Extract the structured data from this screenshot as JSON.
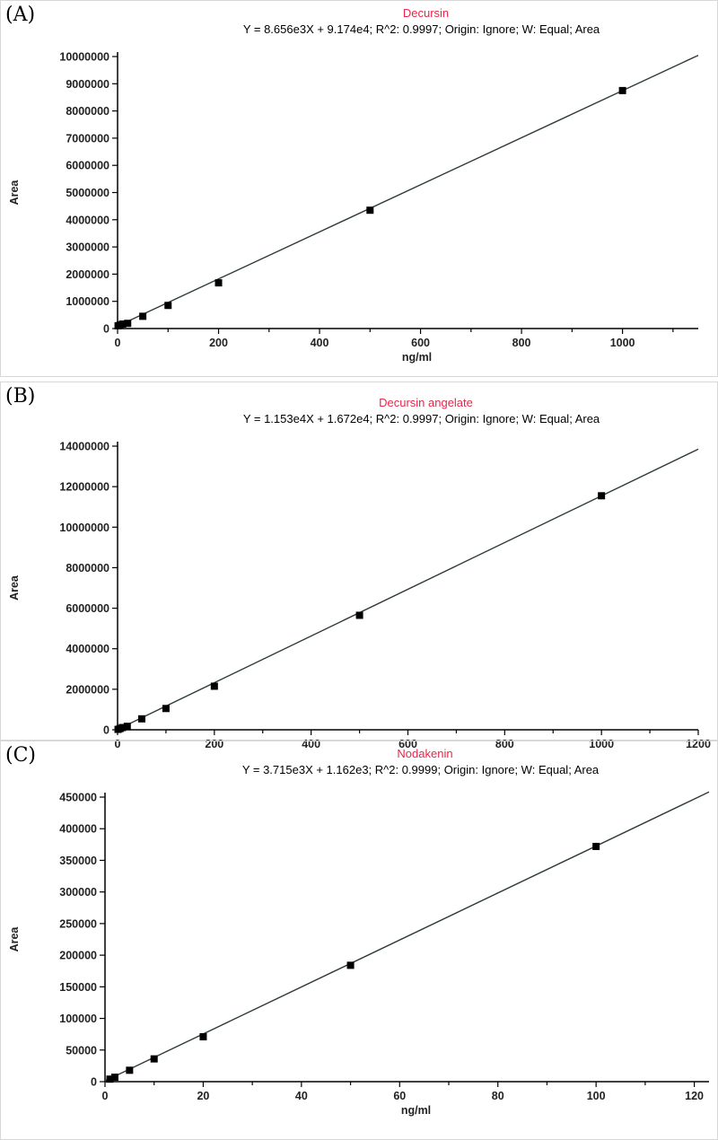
{
  "chart_data": [
    {
      "panel_label": "(A)",
      "type": "scatter",
      "title": "Decursin",
      "subtitle": "Y = 8.656e3X + 9.174e4; R^2: 0.9997; Origin: Ignore; W: Equal; Area",
      "xlabel": "ng/ml",
      "ylabel": "Area",
      "xlim": [
        0,
        1150
      ],
      "ylim": [
        0,
        10000000
      ],
      "xticks": [
        0,
        200,
        400,
        600,
        800,
        1000
      ],
      "yticks": [
        0,
        1000000,
        2000000,
        3000000,
        4000000,
        5000000,
        6000000,
        7000000,
        8000000,
        9000000,
        10000000
      ],
      "grid": false,
      "fit": {
        "slope": 8656,
        "intercept": 91740,
        "x_start": 0,
        "x_end": 1150
      },
      "points": [
        {
          "x": 1,
          "y": 100000
        },
        {
          "x": 5,
          "y": 130000
        },
        {
          "x": 10,
          "y": 165000
        },
        {
          "x": 20,
          "y": 190000
        },
        {
          "x": 50,
          "y": 450000
        },
        {
          "x": 100,
          "y": 850000
        },
        {
          "x": 200,
          "y": 1680000
        },
        {
          "x": 500,
          "y": 4350000
        },
        {
          "x": 1000,
          "y": 8750000
        }
      ],
      "colors": {
        "title": "#e8264a",
        "line": "#2e3b35",
        "marker": "#000000"
      }
    },
    {
      "panel_label": "(B)",
      "type": "scatter",
      "title": "Decursin angelate",
      "subtitle": "Y = 1.153e4X + 1.672e4; R^2: 0.9997; Origin: Ignore; W: Equal; Area",
      "xlabel": "",
      "ylabel": "Area",
      "xlim": [
        0,
        1200
      ],
      "ylim": [
        0,
        14000000
      ],
      "xticks": [
        0,
        200,
        400,
        600,
        800,
        1000,
        1200
      ],
      "yticks": [
        0,
        2000000,
        4000000,
        6000000,
        8000000,
        10000000,
        12000000,
        14000000
      ],
      "grid": false,
      "fit": {
        "slope": 11530,
        "intercept": 16720,
        "x_start": 0,
        "x_end": 1200
      },
      "points": [
        {
          "x": 1,
          "y": 20000
        },
        {
          "x": 5,
          "y": 60000
        },
        {
          "x": 10,
          "y": 110000
        },
        {
          "x": 20,
          "y": 170000
        },
        {
          "x": 50,
          "y": 540000
        },
        {
          "x": 100,
          "y": 1050000
        },
        {
          "x": 200,
          "y": 2150000
        },
        {
          "x": 500,
          "y": 5650000
        },
        {
          "x": 1000,
          "y": 11550000
        }
      ],
      "colors": {
        "title": "#e8264a",
        "line": "#2e3b35",
        "marker": "#000000"
      }
    },
    {
      "panel_label": "(C)",
      "type": "scatter",
      "title": "Nodakenin",
      "subtitle": "Y = 3.715e3X + 1.162e3; R^2: 0.9999; Origin: Ignore; W: Equal; Area",
      "xlabel": "ng/ml",
      "ylabel": "Area",
      "xlim": [
        0,
        123
      ],
      "ylim": [
        0,
        450000
      ],
      "xticks": [
        0,
        20,
        40,
        60,
        80,
        100,
        120
      ],
      "yticks": [
        0,
        50000,
        100000,
        150000,
        200000,
        250000,
        300000,
        350000,
        400000,
        450000
      ],
      "grid": false,
      "fit": {
        "slope": 3715,
        "intercept": 1162,
        "x_start": 0,
        "x_end": 123
      },
      "points": [
        {
          "x": 1,
          "y": 4000
        },
        {
          "x": 2,
          "y": 7000
        },
        {
          "x": 5,
          "y": 18000
        },
        {
          "x": 10,
          "y": 36000
        },
        {
          "x": 20,
          "y": 71000
        },
        {
          "x": 50,
          "y": 184000
        },
        {
          "x": 100,
          "y": 372000
        }
      ],
      "colors": {
        "title": "#e8264a",
        "line": "#2e3b35",
        "marker": "#000000"
      }
    }
  ]
}
